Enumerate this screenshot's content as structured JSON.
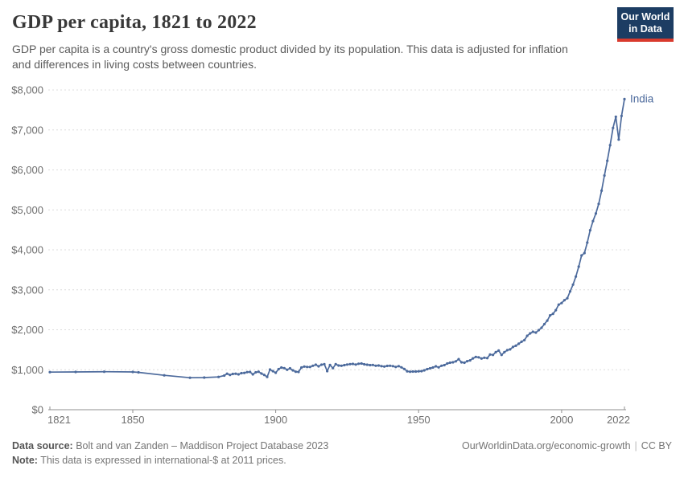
{
  "header": {
    "title": "GDP per capita, 1821 to 2022",
    "subtitle_line1": "GDP per capita is a country's gross domestic product divided by its population. This data is adjusted for inflation",
    "subtitle_line2": "and differences in living costs between countries.",
    "logo": {
      "line1": "Our World",
      "line2": "in Data",
      "bg_color": "#1d3d63",
      "accent_color": "#d93a2d"
    }
  },
  "chart_data": {
    "type": "line",
    "title": "GDP per capita, 1821 to 2022",
    "entity": "India",
    "line_color": "#4C6A9C",
    "grid": "horizontal-dashed",
    "legend_position": "end-of-line-label",
    "xlim": [
      1821,
      2022
    ],
    "ylim": [
      0,
      8000
    ],
    "x_ticks": [
      {
        "value": 1821,
        "label": "1821"
      },
      {
        "value": 1850,
        "label": "1850"
      },
      {
        "value": 1900,
        "label": "1900"
      },
      {
        "value": 1950,
        "label": "1950"
      },
      {
        "value": 2000,
        "label": "2000"
      },
      {
        "value": 2022,
        "label": "2022"
      }
    ],
    "y_ticks": [
      {
        "value": 0,
        "label": "$0"
      },
      {
        "value": 1000,
        "label": "$1,000"
      },
      {
        "value": 2000,
        "label": "$2,000"
      },
      {
        "value": 3000,
        "label": "$3,000"
      },
      {
        "value": 4000,
        "label": "$4,000"
      },
      {
        "value": 5000,
        "label": "$5,000"
      },
      {
        "value": 6000,
        "label": "$6,000"
      },
      {
        "value": 7000,
        "label": "$7,000"
      },
      {
        "value": 8000,
        "label": "$8,000"
      }
    ],
    "series": [
      {
        "name": "India",
        "points": [
          [
            1821,
            940
          ],
          [
            1830,
            945
          ],
          [
            1840,
            950
          ],
          [
            1850,
            945
          ],
          [
            1852,
            935
          ],
          [
            1861,
            860
          ],
          [
            1870,
            800
          ],
          [
            1875,
            805
          ],
          [
            1880,
            820
          ],
          [
            1882,
            855
          ],
          [
            1883,
            900
          ],
          [
            1884,
            870
          ],
          [
            1885,
            895
          ],
          [
            1886,
            900
          ],
          [
            1887,
            885
          ],
          [
            1888,
            915
          ],
          [
            1889,
            920
          ],
          [
            1890,
            940
          ],
          [
            1891,
            945
          ],
          [
            1892,
            885
          ],
          [
            1893,
            935
          ],
          [
            1894,
            950
          ],
          [
            1895,
            905
          ],
          [
            1896,
            870
          ],
          [
            1897,
            820
          ],
          [
            1898,
            1005
          ],
          [
            1899,
            965
          ],
          [
            1900,
            925
          ],
          [
            1901,
            1015
          ],
          [
            1902,
            1055
          ],
          [
            1903,
            1040
          ],
          [
            1904,
            1000
          ],
          [
            1905,
            1035
          ],
          [
            1906,
            985
          ],
          [
            1907,
            950
          ],
          [
            1908,
            945
          ],
          [
            1909,
            1055
          ],
          [
            1910,
            1080
          ],
          [
            1911,
            1070
          ],
          [
            1912,
            1070
          ],
          [
            1913,
            1100
          ],
          [
            1914,
            1125
          ],
          [
            1915,
            1085
          ],
          [
            1916,
            1125
          ],
          [
            1917,
            1140
          ],
          [
            1918,
            965
          ],
          [
            1919,
            1120
          ],
          [
            1920,
            1040
          ],
          [
            1921,
            1140
          ],
          [
            1922,
            1105
          ],
          [
            1923,
            1100
          ],
          [
            1924,
            1115
          ],
          [
            1925,
            1130
          ],
          [
            1926,
            1140
          ],
          [
            1927,
            1145
          ],
          [
            1928,
            1130
          ],
          [
            1929,
            1150
          ],
          [
            1930,
            1155
          ],
          [
            1931,
            1135
          ],
          [
            1932,
            1125
          ],
          [
            1933,
            1115
          ],
          [
            1934,
            1120
          ],
          [
            1935,
            1100
          ],
          [
            1936,
            1105
          ],
          [
            1937,
            1090
          ],
          [
            1938,
            1080
          ],
          [
            1939,
            1095
          ],
          [
            1940,
            1100
          ],
          [
            1941,
            1090
          ],
          [
            1942,
            1070
          ],
          [
            1943,
            1090
          ],
          [
            1944,
            1060
          ],
          [
            1945,
            1020
          ],
          [
            1946,
            960
          ],
          [
            1947,
            950
          ],
          [
            1948,
            955
          ],
          [
            1949,
            955
          ],
          [
            1950,
            960
          ],
          [
            1951,
            965
          ],
          [
            1952,
            985
          ],
          [
            1953,
            1015
          ],
          [
            1954,
            1035
          ],
          [
            1955,
            1055
          ],
          [
            1956,
            1085
          ],
          [
            1957,
            1060
          ],
          [
            1958,
            1100
          ],
          [
            1959,
            1115
          ],
          [
            1960,
            1155
          ],
          [
            1961,
            1175
          ],
          [
            1962,
            1185
          ],
          [
            1963,
            1210
          ],
          [
            1964,
            1265
          ],
          [
            1965,
            1185
          ],
          [
            1966,
            1175
          ],
          [
            1967,
            1215
          ],
          [
            1968,
            1235
          ],
          [
            1969,
            1285
          ],
          [
            1970,
            1320
          ],
          [
            1971,
            1310
          ],
          [
            1972,
            1280
          ],
          [
            1973,
            1300
          ],
          [
            1974,
            1290
          ],
          [
            1975,
            1380
          ],
          [
            1976,
            1370
          ],
          [
            1977,
            1440
          ],
          [
            1978,
            1480
          ],
          [
            1979,
            1370
          ],
          [
            1980,
            1440
          ],
          [
            1981,
            1490
          ],
          [
            1982,
            1510
          ],
          [
            1983,
            1570
          ],
          [
            1984,
            1600
          ],
          [
            1985,
            1650
          ],
          [
            1986,
            1700
          ],
          [
            1987,
            1740
          ],
          [
            1988,
            1850
          ],
          [
            1989,
            1910
          ],
          [
            1990,
            1950
          ],
          [
            1991,
            1930
          ],
          [
            1992,
            1990
          ],
          [
            1993,
            2050
          ],
          [
            1994,
            2140
          ],
          [
            1995,
            2230
          ],
          [
            1996,
            2360
          ],
          [
            1997,
            2400
          ],
          [
            1998,
            2490
          ],
          [
            1999,
            2630
          ],
          [
            2000,
            2670
          ],
          [
            2001,
            2740
          ],
          [
            2002,
            2790
          ],
          [
            2003,
            2960
          ],
          [
            2004,
            3130
          ],
          [
            2005,
            3330
          ],
          [
            2006,
            3580
          ],
          [
            2007,
            3860
          ],
          [
            2008,
            3920
          ],
          [
            2009,
            4180
          ],
          [
            2010,
            4490
          ],
          [
            2011,
            4720
          ],
          [
            2012,
            4910
          ],
          [
            2013,
            5150
          ],
          [
            2014,
            5480
          ],
          [
            2015,
            5860
          ],
          [
            2016,
            6230
          ],
          [
            2017,
            6620
          ],
          [
            2018,
            7050
          ],
          [
            2019,
            7330
          ],
          [
            2020,
            6760
          ],
          [
            2021,
            7350
          ],
          [
            2022,
            7770
          ]
        ]
      }
    ]
  },
  "footer": {
    "source_label": "Data source:",
    "source_text": "Bolt and van Zanden – Maddison Project Database 2023",
    "note_label": "Note:",
    "note_text": "This data is expressed in international-$ at 2011 prices.",
    "link_text": "OurWorldinData.org/economic-growth",
    "separator": "|",
    "license_text": "CC BY"
  }
}
